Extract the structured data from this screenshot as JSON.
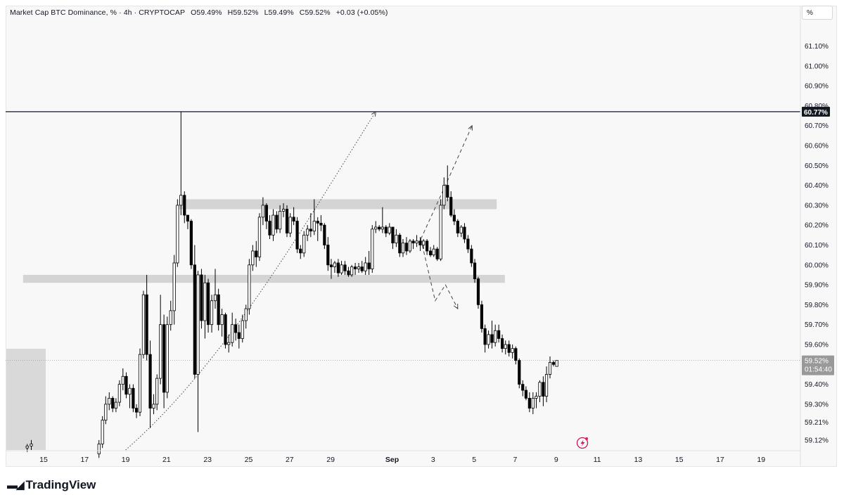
{
  "legend": {
    "symbol": "Market Cap BTC Dominance, % · 4h · CRYPTOCAP",
    "open": "O59.49%",
    "high": "H59.52%",
    "low": "L59.49%",
    "close": "C59.52%",
    "change": "+0.03 (+0.05%)"
  },
  "unit_button": "%",
  "branding": {
    "name": "TradingView"
  },
  "colors": {
    "up_candle": "#ffffff",
    "down_candle": "#000000",
    "wick": "#000000",
    "zone": "#d4d4d4",
    "level_line": "#131722",
    "price_badge": "#999999"
  },
  "chart_data": {
    "type": "candlestick",
    "title": "Market Cap BTC Dominance",
    "interval": "4h",
    "exchange": "CRYPTOCAP",
    "ylim": [
      59.07,
      61.19
    ],
    "y_ticks": [
      "61.10%",
      "61.00%",
      "60.90%",
      "60.80%",
      "60.70%",
      "60.60%",
      "60.50%",
      "60.40%",
      "60.30%",
      "60.20%",
      "60.10%",
      "60.00%",
      "59.90%",
      "59.80%",
      "59.70%",
      "59.60%",
      "59.40%",
      "59.30%",
      "59.21%",
      "59.12%"
    ],
    "y_tick_values": [
      61.1,
      61.0,
      60.9,
      60.8,
      60.7,
      60.6,
      60.5,
      60.4,
      60.3,
      60.2,
      60.1,
      60.0,
      59.9,
      59.8,
      59.7,
      59.6,
      59.4,
      59.3,
      59.21,
      59.12
    ],
    "x_ticks": [
      {
        "label": "15",
        "day": 15
      },
      {
        "label": "17",
        "day": 17
      },
      {
        "label": "19",
        "day": 19
      },
      {
        "label": "21",
        "day": 21
      },
      {
        "label": "23",
        "day": 23
      },
      {
        "label": "25",
        "day": 25
      },
      {
        "label": "27",
        "day": 27
      },
      {
        "label": "29",
        "day": 29
      },
      {
        "label": "Sep",
        "day": 32
      },
      {
        "label": "3",
        "day": 34
      },
      {
        "label": "5",
        "day": 36
      },
      {
        "label": "7",
        "day": 38
      },
      {
        "label": "9",
        "day": 40
      },
      {
        "label": "11",
        "day": 42
      },
      {
        "label": "13",
        "day": 44
      },
      {
        "label": "15",
        "day": 46
      },
      {
        "label": "17",
        "day": 48
      },
      {
        "label": "19",
        "day": 50
      }
    ],
    "horizontal_level": {
      "value": 60.77,
      "label": "60.77%"
    },
    "current_price": {
      "value": 59.52,
      "label": "59.52%",
      "countdown": "01:54:40"
    },
    "zones": [
      {
        "from_day": 21.6,
        "to_day": 37.1,
        "low": 60.28,
        "high": 60.33
      },
      {
        "from_day": 14.0,
        "to_day": 37.5,
        "low": 59.91,
        "high": 59.95
      }
    ],
    "candles": [
      [
        14.2,
        59.08,
        59.1,
        59.06,
        59.09
      ],
      [
        14.4,
        59.09,
        59.12,
        59.07,
        59.1
      ],
      [
        17.7,
        59.05,
        59.12,
        59.03,
        59.1
      ],
      [
        17.87,
        59.1,
        59.24,
        59.08,
        59.22
      ],
      [
        18.03,
        59.22,
        59.34,
        59.2,
        59.3
      ],
      [
        18.2,
        59.3,
        59.36,
        59.27,
        59.33
      ],
      [
        18.37,
        59.33,
        59.34,
        59.26,
        59.28
      ],
      [
        18.53,
        59.28,
        59.33,
        59.26,
        59.31
      ],
      [
        18.7,
        59.31,
        59.42,
        59.29,
        59.4
      ],
      [
        18.87,
        59.4,
        59.48,
        59.37,
        59.44
      ],
      [
        19.03,
        59.44,
        59.46,
        59.33,
        59.35
      ],
      [
        19.2,
        59.35,
        59.4,
        59.28,
        59.38
      ],
      [
        19.37,
        59.38,
        59.4,
        59.26,
        59.28
      ],
      [
        19.53,
        59.28,
        59.3,
        59.23,
        59.26
      ],
      [
        19.7,
        59.26,
        59.58,
        59.24,
        59.55
      ],
      [
        19.87,
        59.55,
        59.87,
        59.53,
        59.85
      ],
      [
        20.03,
        59.85,
        59.95,
        59.52,
        59.55
      ],
      [
        20.2,
        59.55,
        59.62,
        59.18,
        59.28
      ],
      [
        20.37,
        59.28,
        59.35,
        59.25,
        59.3
      ],
      [
        20.53,
        59.3,
        59.45,
        59.27,
        59.43
      ],
      [
        20.7,
        59.43,
        59.85,
        59.4,
        59.7
      ],
      [
        20.87,
        59.7,
        59.75,
        59.28,
        59.36
      ],
      [
        21.03,
        59.36,
        59.74,
        59.33,
        59.7
      ],
      [
        21.2,
        59.7,
        59.82,
        59.67,
        59.77
      ],
      [
        21.37,
        59.77,
        60.05,
        59.7,
        60.01
      ],
      [
        21.53,
        60.01,
        60.33,
        59.99,
        60.3
      ],
      [
        21.7,
        60.3,
        60.77,
        60.25,
        60.35
      ],
      [
        21.87,
        60.35,
        60.37,
        60.21,
        60.25
      ],
      [
        22.03,
        60.25,
        60.25,
        60.18,
        60.22
      ],
      [
        22.2,
        60.22,
        60.23,
        59.98,
        60.0
      ],
      [
        22.37,
        60.0,
        60.1,
        59.43,
        59.45
      ],
      [
        22.53,
        59.45,
        59.97,
        59.16,
        59.95
      ],
      [
        22.7,
        59.95,
        59.98,
        59.68,
        59.72
      ],
      [
        22.87,
        59.72,
        59.95,
        59.63,
        59.91
      ],
      [
        23.03,
        59.91,
        59.93,
        59.66,
        59.7
      ],
      [
        23.2,
        59.7,
        59.85,
        59.66,
        59.82
      ],
      [
        23.37,
        59.82,
        59.98,
        59.78,
        59.85
      ],
      [
        23.53,
        59.85,
        59.88,
        59.67,
        59.7
      ],
      [
        23.7,
        59.7,
        59.78,
        59.64,
        59.75
      ],
      [
        23.87,
        59.75,
        59.76,
        59.58,
        59.6
      ],
      [
        24.03,
        59.6,
        59.65,
        59.56,
        59.61
      ],
      [
        24.2,
        59.61,
        59.76,
        59.59,
        59.7
      ],
      [
        24.37,
        59.7,
        59.73,
        59.62,
        59.66
      ],
      [
        24.53,
        59.66,
        59.7,
        59.58,
        59.63
      ],
      [
        24.7,
        59.63,
        59.75,
        59.61,
        59.72
      ],
      [
        24.87,
        59.72,
        59.8,
        59.68,
        59.78
      ],
      [
        25.03,
        59.78,
        60.03,
        59.75,
        60.0
      ],
      [
        25.2,
        60.0,
        60.1,
        59.97,
        60.07
      ],
      [
        25.37,
        60.07,
        60.12,
        59.99,
        60.04
      ],
      [
        25.53,
        60.04,
        60.26,
        60.02,
        60.24
      ],
      [
        25.7,
        60.24,
        60.34,
        60.2,
        60.3
      ],
      [
        25.87,
        60.3,
        60.31,
        60.18,
        60.22
      ],
      [
        26.03,
        60.22,
        60.25,
        60.13,
        60.15
      ],
      [
        26.2,
        60.15,
        60.28,
        60.12,
        60.25
      ],
      [
        26.37,
        60.25,
        60.27,
        60.16,
        60.18
      ],
      [
        26.53,
        60.18,
        60.3,
        60.16,
        60.27
      ],
      [
        26.7,
        60.27,
        60.31,
        60.24,
        60.28
      ],
      [
        26.87,
        60.28,
        60.3,
        60.14,
        60.16
      ],
      [
        27.03,
        60.16,
        60.26,
        60.14,
        60.24
      ],
      [
        27.2,
        60.24,
        60.29,
        60.2,
        60.22
      ],
      [
        27.37,
        60.22,
        60.24,
        60.06,
        60.08
      ],
      [
        27.53,
        60.08,
        60.1,
        60.03,
        60.06
      ],
      [
        27.7,
        60.06,
        60.17,
        60.04,
        60.15
      ],
      [
        27.87,
        60.15,
        60.2,
        60.12,
        60.18
      ],
      [
        28.03,
        60.18,
        60.26,
        60.14,
        60.17
      ],
      [
        28.2,
        60.17,
        60.33,
        60.15,
        60.22
      ],
      [
        28.37,
        60.22,
        60.24,
        60.12,
        60.21
      ],
      [
        28.53,
        60.21,
        60.25,
        60.17,
        60.2
      ],
      [
        28.7,
        60.2,
        60.21,
        60.08,
        60.1
      ],
      [
        28.87,
        60.1,
        60.14,
        59.97,
        60.0
      ],
      [
        29.03,
        60.0,
        60.03,
        59.93,
        59.99
      ],
      [
        29.2,
        59.99,
        60.02,
        59.96,
        60.01
      ],
      [
        29.37,
        60.01,
        60.03,
        59.94,
        59.96
      ],
      [
        29.53,
        59.96,
        60.02,
        59.95,
        60.0
      ],
      [
        29.7,
        60.0,
        60.02,
        59.95,
        59.97
      ],
      [
        29.87,
        59.97,
        59.99,
        59.94,
        59.95
      ],
      [
        30.03,
        59.95,
        60.0,
        59.94,
        59.99
      ],
      [
        30.2,
        59.99,
        60.01,
        59.95,
        59.98
      ],
      [
        30.37,
        59.98,
        60.01,
        59.96,
        59.99
      ],
      [
        30.53,
        59.99,
        60.02,
        59.96,
        59.97
      ],
      [
        30.7,
        59.97,
        60.04,
        59.95,
        60.01
      ],
      [
        30.87,
        60.01,
        60.07,
        59.95,
        59.98
      ],
      [
        31.03,
        59.98,
        60.2,
        59.96,
        60.18
      ],
      [
        31.2,
        60.18,
        60.22,
        60.16,
        60.19
      ],
      [
        31.37,
        60.19,
        60.2,
        60.17,
        60.18
      ],
      [
        31.53,
        60.18,
        60.29,
        60.16,
        60.19
      ],
      [
        31.7,
        60.19,
        60.2,
        60.14,
        60.16
      ],
      [
        31.87,
        60.16,
        60.21,
        60.15,
        60.19
      ],
      [
        32.03,
        60.19,
        60.19,
        60.08,
        60.11
      ],
      [
        32.2,
        60.11,
        60.18,
        60.09,
        60.15
      ],
      [
        32.37,
        60.15,
        60.16,
        60.04,
        60.06
      ],
      [
        32.53,
        60.06,
        60.13,
        60.04,
        60.11
      ],
      [
        32.7,
        60.11,
        60.14,
        60.05,
        60.07
      ],
      [
        32.87,
        60.07,
        60.13,
        60.06,
        60.12
      ],
      [
        33.03,
        60.12,
        60.13,
        60.08,
        60.11
      ],
      [
        33.2,
        60.11,
        60.15,
        60.09,
        60.12
      ],
      [
        33.37,
        60.12,
        60.14,
        60.07,
        60.1
      ],
      [
        33.53,
        60.1,
        60.13,
        60.08,
        60.12
      ],
      [
        33.7,
        60.12,
        60.13,
        60.05,
        60.07
      ],
      [
        33.87,
        60.07,
        60.09,
        60.04,
        60.05
      ],
      [
        34.03,
        60.05,
        60.1,
        60.04,
        60.08
      ],
      [
        34.2,
        60.08,
        60.09,
        60.02,
        60.03
      ],
      [
        34.37,
        60.03,
        60.33,
        60.02,
        60.3
      ],
      [
        34.53,
        60.3,
        60.44,
        60.28,
        60.4
      ],
      [
        34.7,
        60.4,
        60.5,
        60.32,
        60.34
      ],
      [
        34.87,
        60.34,
        60.37,
        60.24,
        60.25
      ],
      [
        35.03,
        60.25,
        60.28,
        60.2,
        60.22
      ],
      [
        35.2,
        60.22,
        60.23,
        60.14,
        60.16
      ],
      [
        35.37,
        60.16,
        60.2,
        60.14,
        60.19
      ],
      [
        35.53,
        60.19,
        60.21,
        60.11,
        60.13
      ],
      [
        35.7,
        60.13,
        60.15,
        60.06,
        60.08
      ],
      [
        35.87,
        60.08,
        60.1,
        59.99,
        60.01
      ],
      [
        36.03,
        60.01,
        60.03,
        59.91,
        59.93
      ],
      [
        36.2,
        59.93,
        59.94,
        59.78,
        59.8
      ],
      [
        36.37,
        59.8,
        59.82,
        59.66,
        59.68
      ],
      [
        36.53,
        59.68,
        59.7,
        59.56,
        59.6
      ],
      [
        36.7,
        59.6,
        59.67,
        59.58,
        59.65
      ],
      [
        36.87,
        59.65,
        59.72,
        59.58,
        59.61
      ],
      [
        37.03,
        59.61,
        59.7,
        59.59,
        59.67
      ],
      [
        37.2,
        59.67,
        59.7,
        59.61,
        59.63
      ],
      [
        37.37,
        59.63,
        59.65,
        59.56,
        59.58
      ],
      [
        37.53,
        59.58,
        59.62,
        59.55,
        59.6
      ],
      [
        37.7,
        59.6,
        59.62,
        59.54,
        59.56
      ],
      [
        37.87,
        59.56,
        59.6,
        59.53,
        59.58
      ],
      [
        38.03,
        59.58,
        59.59,
        59.5,
        59.52
      ],
      [
        38.2,
        59.52,
        59.53,
        59.38,
        59.4
      ],
      [
        38.37,
        59.4,
        59.42,
        59.34,
        59.37
      ],
      [
        38.53,
        59.37,
        59.39,
        59.32,
        59.33
      ],
      [
        38.7,
        59.33,
        59.36,
        59.26,
        59.28
      ],
      [
        38.87,
        59.28,
        59.36,
        59.25,
        59.33
      ],
      [
        39.03,
        59.33,
        59.36,
        59.28,
        59.34
      ],
      [
        39.2,
        59.34,
        59.42,
        59.31,
        59.41
      ],
      [
        39.37,
        59.41,
        59.44,
        59.29,
        59.34
      ],
      [
        39.53,
        59.34,
        59.49,
        59.31,
        59.45
      ],
      [
        39.7,
        59.45,
        59.54,
        59.43,
        59.51
      ],
      [
        39.87,
        59.51,
        59.52,
        59.49,
        59.5
      ],
      [
        40.03,
        59.49,
        59.52,
        59.49,
        59.52
      ]
    ],
    "annotations": [
      {
        "type": "dotted-arc-arrow",
        "points": [
          [
            19.0,
            59.07
          ],
          [
            24.0,
            59.52
          ],
          [
            28.0,
            60.25
          ],
          [
            31.2,
            60.77
          ]
        ]
      },
      {
        "type": "dashed-arrow-up",
        "points": [
          [
            33.4,
            60.13
          ],
          [
            34.6,
            60.4
          ],
          [
            35.9,
            60.7
          ]
        ]
      },
      {
        "type": "dashed-arrow-down",
        "points": [
          [
            33.4,
            60.13
          ],
          [
            34.1,
            59.82
          ],
          [
            34.6,
            59.9
          ],
          [
            35.2,
            59.78
          ]
        ]
      }
    ]
  }
}
